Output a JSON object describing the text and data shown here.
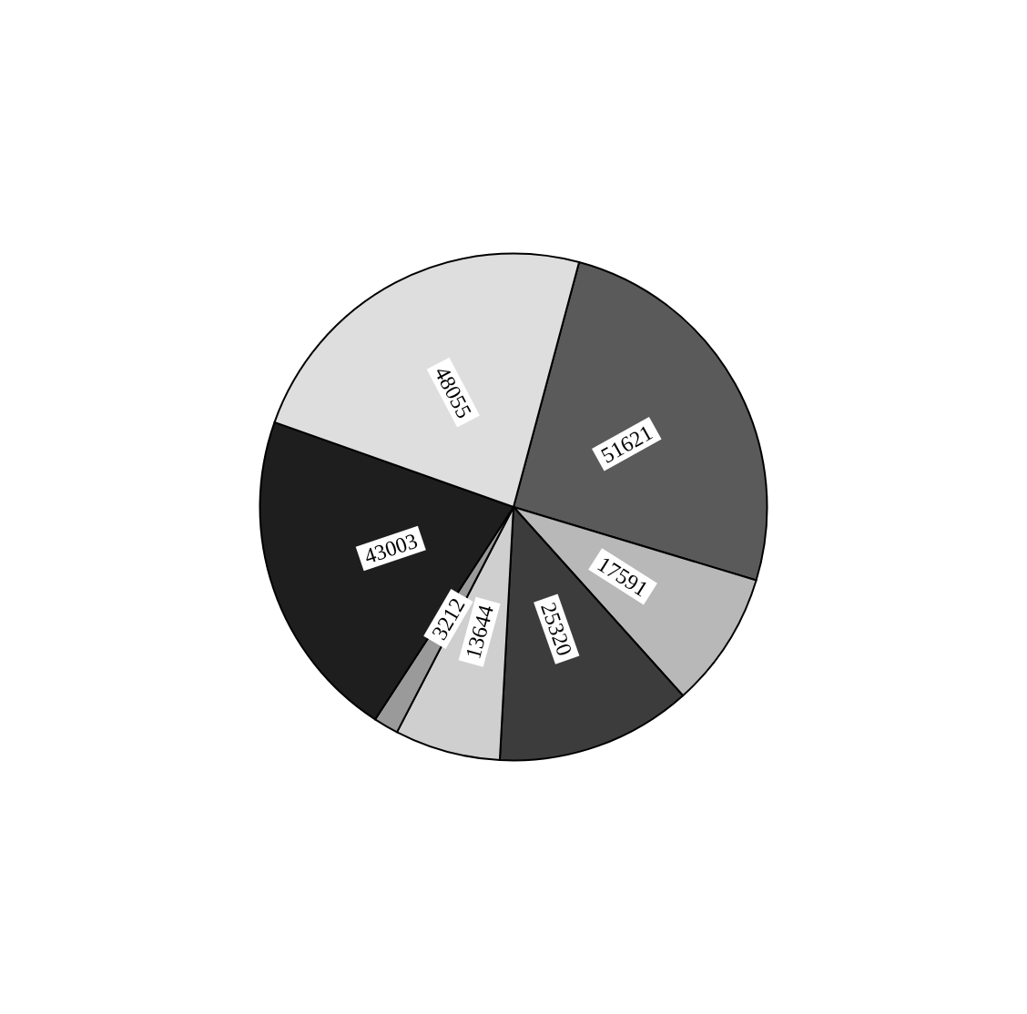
{
  "chart_data": {
    "type": "pie",
    "categories": [
      null,
      null,
      null,
      null,
      null,
      null,
      null
    ],
    "values": [
      51621,
      17591,
      25320,
      13644,
      3212,
      43003,
      48055
    ],
    "colors": [
      "#5a5a5a",
      "#b8b8b8",
      "#3c3c3c",
      "#cfcfcf",
      "#9a9a9a",
      "#1e1e1e",
      "#dedede"
    ],
    "data_labels": true
  }
}
